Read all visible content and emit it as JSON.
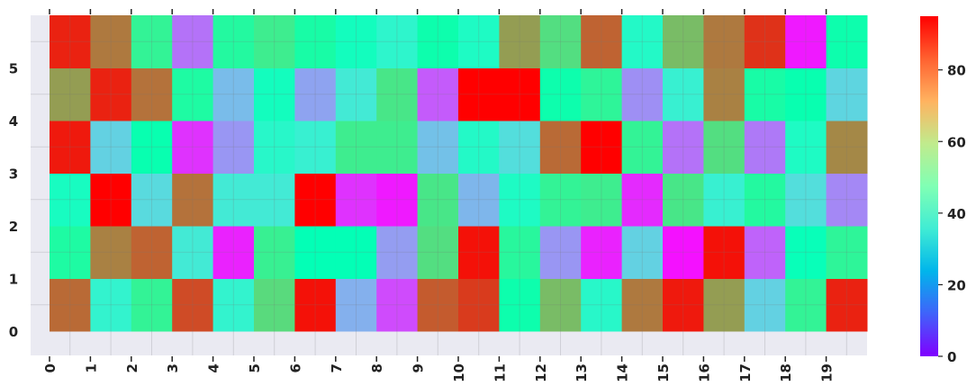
{
  "chart_data": {
    "type": "heatmap",
    "title": "",
    "xlabel": "",
    "ylabel": "",
    "colormap": "rainbow",
    "vmin": 0,
    "vmax": 95,
    "x_ticks": [
      "0",
      "1",
      "2",
      "3",
      "4",
      "5",
      "6",
      "7",
      "8",
      "9",
      "10",
      "11",
      "12",
      "13",
      "14",
      "15",
      "16",
      "17",
      "18",
      "19"
    ],
    "y_ticks": [
      "0",
      "1",
      "2",
      "3",
      "4",
      "5"
    ],
    "colorbar_ticks": [
      "0",
      "20",
      "40",
      "60",
      "80"
    ],
    "colorbar_values": [
      0,
      20,
      40,
      60,
      80
    ],
    "grid": true,
    "rows": [
      [
        82,
        38,
        57,
        86,
        38,
        64,
        93,
        23,
        9,
        84,
        88,
        50,
        70,
        40,
        80,
        92,
        75,
        29,
        57,
        91
      ],
      [
        53,
        79,
        83,
        35,
        4,
        58,
        47,
        47,
        20,
        63,
        93,
        55,
        19,
        4,
        29,
        2,
        93,
        12,
        46,
        56
      ],
      [
        43,
        95,
        31,
        81,
        35,
        35,
        95,
        6,
        3,
        61,
        24,
        42,
        57,
        59,
        5,
        61,
        37,
        54,
        32,
        17
      ],
      [
        92,
        29,
        49,
        6,
        19,
        40,
        37,
        59,
        59,
        26,
        41,
        32,
        82,
        95,
        57,
        14,
        63,
        15,
        42,
        78
      ],
      [
        75,
        91,
        81,
        53,
        25,
        44,
        21,
        35,
        61,
        11,
        95,
        95,
        50,
        56,
        18,
        37,
        79,
        52,
        49,
        30
      ],
      [
        91,
        80,
        57,
        14,
        54,
        59,
        52,
        44,
        39,
        50,
        42,
        75,
        63,
        83,
        41,
        70,
        80,
        89,
        3,
        50
      ]
    ]
  }
}
